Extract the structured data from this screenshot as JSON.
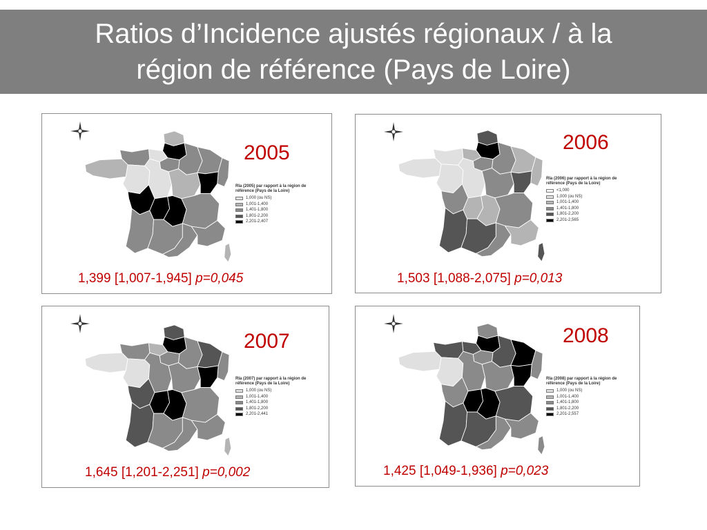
{
  "title": {
    "line1": "Ratios d’Incidence ajustés régionaux / à la",
    "line2": "région de référence (Pays de Loire)"
  },
  "colors": {
    "title_bar": "#7f7f7f",
    "accent_red": "#c00000",
    "classes": [
      "#ffffff",
      "#e0e0e0",
      "#b4b4b4",
      "#8a8a8a",
      "#555555",
      "#000000"
    ]
  },
  "panels": [
    {
      "year": "2005",
      "stat_ratio": "1,399 [1,007-1,945]",
      "stat_p": "p=0,045",
      "legend_title": "RIa (2005) par rapport à la région de référence (Pays de la Loire)",
      "legend_items": [
        "1,000 (ou NS)",
        "1,001-1,400",
        "1,401-1,800",
        "1,801-2,200",
        "2,201-2,407"
      ],
      "legend_shades": [
        1,
        2,
        3,
        4,
        5
      ],
      "region_shades": [
        2,
        5,
        1,
        3,
        2,
        3,
        1,
        1,
        3,
        3,
        3,
        2,
        5,
        5,
        5,
        5,
        3,
        3,
        3,
        3,
        3,
        2
      ]
    },
    {
      "year": "2006",
      "stat_ratio": "1,503 [1,088-2,075]",
      "stat_p": "p=0,013",
      "legend_title": "RIa (2006) par rapport à la région de référence (Pays de la Loire)",
      "legend_items": [
        "<1,000",
        "1,000 (ou NS)",
        "1,001-1,400",
        "1,401-1,800",
        "1,801-2,200",
        "2,201-2,565"
      ],
      "legend_shades": [
        0,
        1,
        2,
        3,
        4,
        5
      ],
      "region_shades": [
        4,
        5,
        2,
        1,
        1,
        3,
        1,
        1,
        3,
        2,
        2,
        3,
        4,
        3,
        2,
        2,
        3,
        4,
        4,
        3,
        2,
        4
      ]
    },
    {
      "year": "2007",
      "stat_ratio": "1,645 [1,201-2,251]",
      "stat_p": "p=0,002",
      "legend_title": "RIa (2007) par rapport à la région de référence (Pays de la Loire)",
      "legend_items": [
        "1,000 (ou NS)",
        "1,001-1,400",
        "1,401-1,800",
        "1,801-2,200",
        "2,201-2,441"
      ],
      "legend_shades": [
        1,
        2,
        3,
        4,
        5
      ],
      "region_shades": [
        4,
        5,
        2,
        3,
        1,
        3,
        1,
        3,
        3,
        4,
        3,
        3,
        5,
        4,
        5,
        5,
        3,
        4,
        3,
        3,
        3,
        2
      ]
    },
    {
      "year": "2008",
      "stat_ratio": "1,425 [1,049-1,936]",
      "stat_p": "p=0,023",
      "legend_title": "RIa (2008) par rapport à la région de référence (Pays de la Loire)",
      "legend_items": [
        "1,000 (ou NS)",
        "1,001-1,400",
        "1,401-1,800",
        "1,801-2,200",
        "2,201-2,557"
      ],
      "legend_shades": [
        1,
        2,
        3,
        4,
        5
      ],
      "region_shades": [
        3,
        5,
        4,
        4,
        1,
        3,
        1,
        3,
        4,
        5,
        3,
        3,
        5,
        3,
        5,
        5,
        4,
        4,
        4,
        3,
        3,
        3
      ]
    }
  ]
}
